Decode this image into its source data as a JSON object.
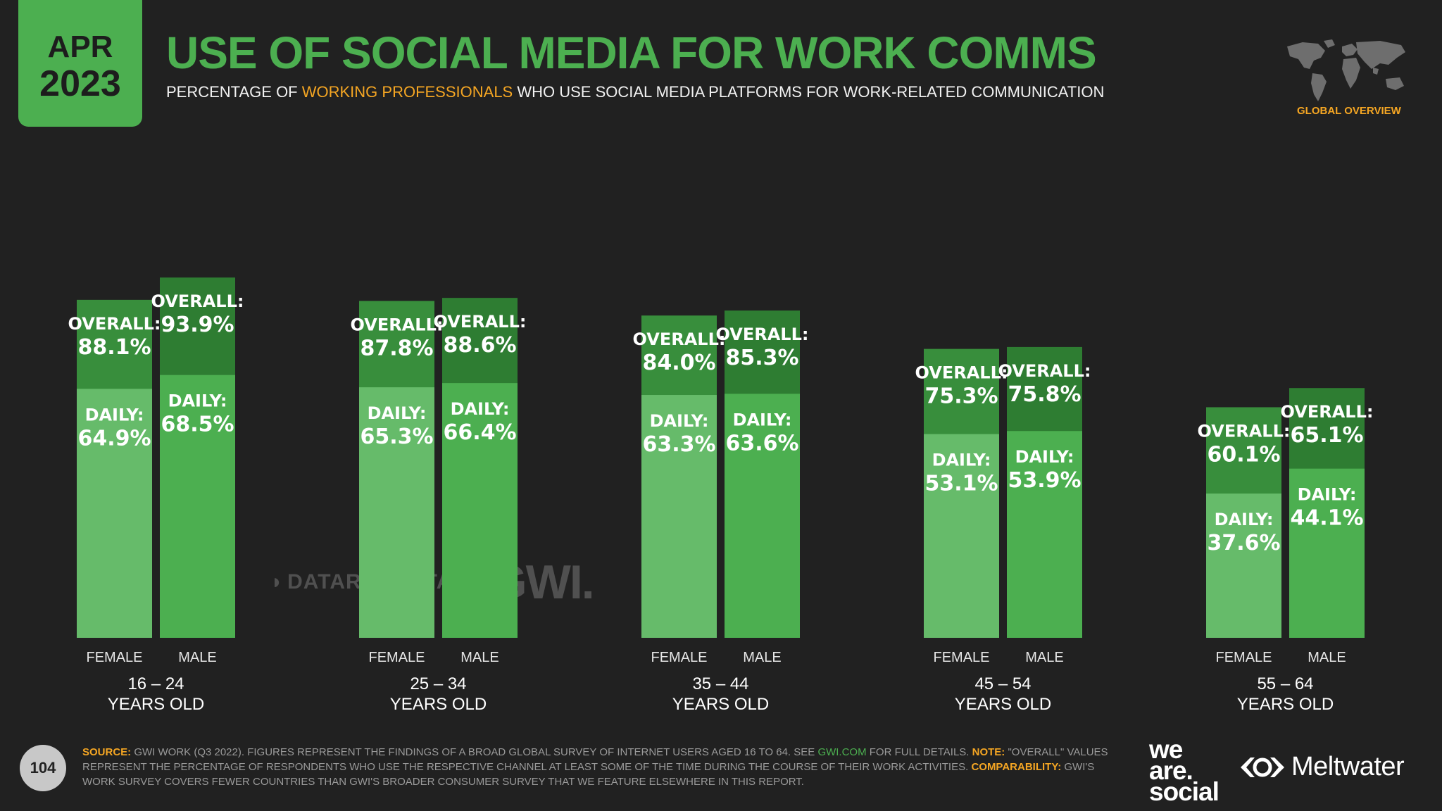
{
  "header": {
    "month": "APR",
    "year": "2023",
    "title": "USE OF SOCIAL MEDIA FOR WORK COMMS",
    "subtitle_pre": "PERCENTAGE OF ",
    "subtitle_highlight": "WORKING PROFESSIONALS",
    "subtitle_post": " WHO USE SOCIAL MEDIA PLATFORMS FOR WORK-RELATED COMMUNICATION",
    "region_label": "GLOBAL OVERVIEW"
  },
  "colors": {
    "background": "#212121",
    "accent_green": "#4caf50",
    "highlight_orange": "#f5a623",
    "female_overall": "#388e3c",
    "female_daily": "#66bb6a",
    "male_overall": "#2e7d32",
    "male_daily": "#4caf50"
  },
  "chart_data": {
    "type": "bar",
    "categories": [
      "16 – 24 YEARS OLD",
      "25 – 34 YEARS OLD",
      "35 – 44 YEARS OLD",
      "45 – 54 YEARS OLD",
      "55 – 64 YEARS OLD"
    ],
    "category_lines": [
      [
        "16 – 24",
        "YEARS OLD"
      ],
      [
        "25 – 34",
        "YEARS OLD"
      ],
      [
        "35 – 44",
        "YEARS OLD"
      ],
      [
        "45 – 54",
        "YEARS OLD"
      ],
      [
        "55 – 64",
        "YEARS OLD"
      ]
    ],
    "genders": [
      "FEMALE",
      "MALE"
    ],
    "overall_label": "OVERALL:",
    "daily_label": "DAILY:",
    "series": [
      {
        "name": "FEMALE",
        "overall": [
          88.1,
          87.8,
          84.0,
          75.3,
          60.1
        ],
        "daily": [
          64.9,
          65.3,
          63.3,
          53.1,
          37.6
        ]
      },
      {
        "name": "MALE",
        "overall": [
          93.9,
          88.6,
          85.3,
          75.8,
          65.1
        ],
        "daily": [
          68.5,
          66.4,
          63.6,
          53.9,
          44.1
        ]
      }
    ],
    "ylim": [
      0,
      100
    ]
  },
  "watermark": {
    "datareportal": "DATAREPORTAL",
    "gwi": "GWI."
  },
  "footer": {
    "page_number": "104",
    "source_label": "SOURCE:",
    "source_text_1": " GWI WORK (Q3 2022). FIGURES REPRESENT THE FINDINGS OF A BROAD GLOBAL SURVEY OF INTERNET USERS AGED 16 TO 64. SEE ",
    "source_link": "GWI.COM",
    "source_text_2": " FOR FULL DETAILS. ",
    "note_label": "NOTE:",
    "note_text": " \"OVERALL\" VALUES REPRESENT THE PERCENTAGE OF RESPONDENTS WHO USE THE RESPECTIVE CHANNEL AT LEAST SOME OF THE TIME DURING THE COURSE OF THEIR WORK ACTIVITIES. ",
    "comparability_label": "COMPARABILITY:",
    "comparability_text": " GWI'S WORK SURVEY COVERS FEWER COUNTRIES THAN GWI'S BROADER CONSUMER SURVEY THAT WE FEATURE ELSEWHERE IN THIS REPORT.",
    "brand_we": "we",
    "brand_are": "are.",
    "brand_social": "social",
    "brand_meltwater": "Meltwater"
  }
}
